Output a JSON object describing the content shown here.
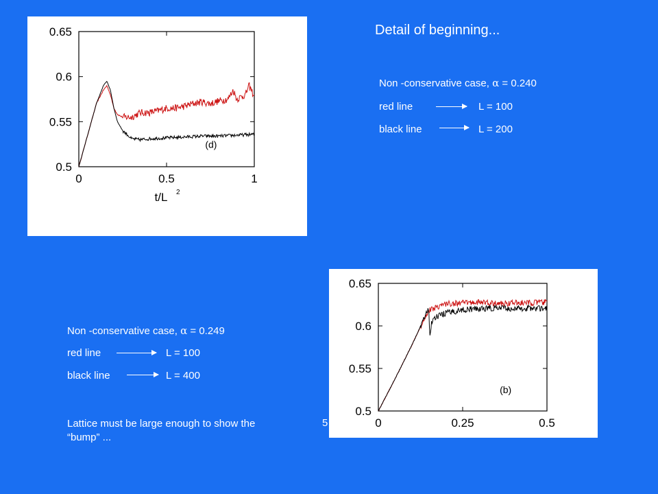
{
  "title": "Detail of beginning...",
  "block_top": {
    "case_prefix": "Non -conservative case, ",
    "alpha_symbol": "α",
    "case_suffix": " = 0.240",
    "red_label": "red line",
    "red_value": "L = 100",
    "black_label": "black line",
    "black_value": "L = 200"
  },
  "block_bottom": {
    "case_prefix": "Non -conservative case, ",
    "alpha_symbol": "α",
    "case_suffix": " = 0.249",
    "red_label": "red line",
    "red_value": "L = 100",
    "black_label": "black line",
    "black_value": "L = 400"
  },
  "note": "Lattice must be large enough to show the  “bump” ...",
  "stray_char": "5",
  "colors": {
    "background": "#1a6ff2",
    "red_series": "#cc1111",
    "black_series": "#000000"
  },
  "chart_data": [
    {
      "type": "line",
      "panel_label": "(d)",
      "xlabel": "t/L",
      "xlabel_sup": "2",
      "xlim": [
        0,
        1
      ],
      "ylim": [
        0.5,
        0.65
      ],
      "xticks": [
        "0",
        "0.5",
        "1"
      ],
      "xtick_values": [
        0,
        0.5,
        1
      ],
      "yticks": [
        "0.5",
        "0.55",
        "0.6",
        "0.65"
      ],
      "ytick_values": [
        0.5,
        0.55,
        0.6,
        0.65
      ],
      "series": [
        {
          "color": "red",
          "x": [
            0,
            0.05,
            0.1,
            0.14,
            0.16,
            0.18,
            0.2,
            0.22,
            0.25,
            0.3,
            0.35,
            0.4,
            0.45,
            0.5,
            0.55,
            0.6,
            0.65,
            0.7,
            0.75,
            0.8,
            0.85,
            0.88,
            0.9,
            0.95,
            0.97,
            1.0
          ],
          "y": [
            0.5,
            0.535,
            0.57,
            0.585,
            0.59,
            0.58,
            0.565,
            0.558,
            0.555,
            0.555,
            0.56,
            0.56,
            0.562,
            0.565,
            0.565,
            0.567,
            0.57,
            0.572,
            0.57,
            0.573,
            0.575,
            0.585,
            0.575,
            0.58,
            0.59,
            0.578
          ],
          "noise": 0.004
        },
        {
          "color": "black",
          "x": [
            0,
            0.05,
            0.1,
            0.14,
            0.16,
            0.18,
            0.2,
            0.22,
            0.25,
            0.28,
            0.3,
            0.35,
            0.4,
            0.5,
            0.6,
            0.7,
            0.8,
            0.9,
            1.0
          ],
          "y": [
            0.5,
            0.535,
            0.57,
            0.59,
            0.595,
            0.585,
            0.565,
            0.55,
            0.54,
            0.535,
            0.531,
            0.53,
            0.531,
            0.532,
            0.533,
            0.534,
            0.534,
            0.535,
            0.536
          ],
          "noise": 0.0018
        }
      ]
    },
    {
      "type": "line",
      "panel_label": "(b)",
      "xlabel": "",
      "xlim": [
        0,
        0.5
      ],
      "ylim": [
        0.5,
        0.65
      ],
      "xticks": [
        "0",
        "0.25",
        "0.5"
      ],
      "xtick_values": [
        0,
        0.25,
        0.5
      ],
      "yticks": [
        "0.5",
        "0.55",
        "0.6",
        "0.65"
      ],
      "ytick_values": [
        0.5,
        0.55,
        0.6,
        0.65
      ],
      "series": [
        {
          "color": "red",
          "x": [
            0,
            0.05,
            0.1,
            0.14,
            0.15,
            0.17,
            0.2,
            0.25,
            0.3,
            0.35,
            0.4,
            0.45,
            0.5
          ],
          "y": [
            0.5,
            0.538,
            0.578,
            0.612,
            0.618,
            0.622,
            0.626,
            0.627,
            0.628,
            0.626,
            0.627,
            0.627,
            0.628
          ],
          "noise": 0.0035
        },
        {
          "color": "black",
          "x": [
            0,
            0.05,
            0.1,
            0.14,
            0.149,
            0.153,
            0.157,
            0.16,
            0.18,
            0.2,
            0.25,
            0.3,
            0.35,
            0.4,
            0.45,
            0.5
          ],
          "y": [
            0.5,
            0.538,
            0.578,
            0.612,
            0.62,
            0.586,
            0.603,
            0.607,
            0.612,
            0.615,
            0.619,
            0.62,
            0.621,
            0.62,
            0.621,
            0.62
          ],
          "noise": 0.0035
        }
      ]
    }
  ]
}
